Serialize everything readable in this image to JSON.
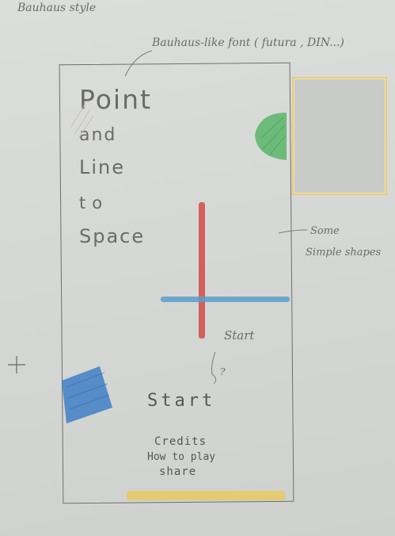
{
  "annotations": {
    "style_note": "Bauhaus style",
    "font_note": "Bauhaus-like font ( futura , DIN...)",
    "shapes_note_line1": "Some",
    "shapes_note_line2": "Simple shapes",
    "start_note": "Start",
    "question_mark": "?"
  },
  "app": {
    "title_lines": [
      "Point",
      "and",
      "Line",
      "to",
      "Space"
    ],
    "start_label": "Start",
    "menu": [
      "Credits",
      "How to play",
      "share"
    ]
  },
  "colors": {
    "paper": "#d6d8d6",
    "red_line": "#d2534f",
    "blue_line": "#5b9fcc",
    "green_circle": "#5ab56a",
    "blue_square": "#3f7fc4",
    "yellow_bar": "#e8c85a",
    "preview_border": "#e8cc80"
  },
  "icons": {
    "crosshair": "crosshair-icon",
    "shapes": [
      "green-circle",
      "red-vertical-line",
      "blue-horizontal-line",
      "blue-square",
      "yellow-bar"
    ]
  }
}
